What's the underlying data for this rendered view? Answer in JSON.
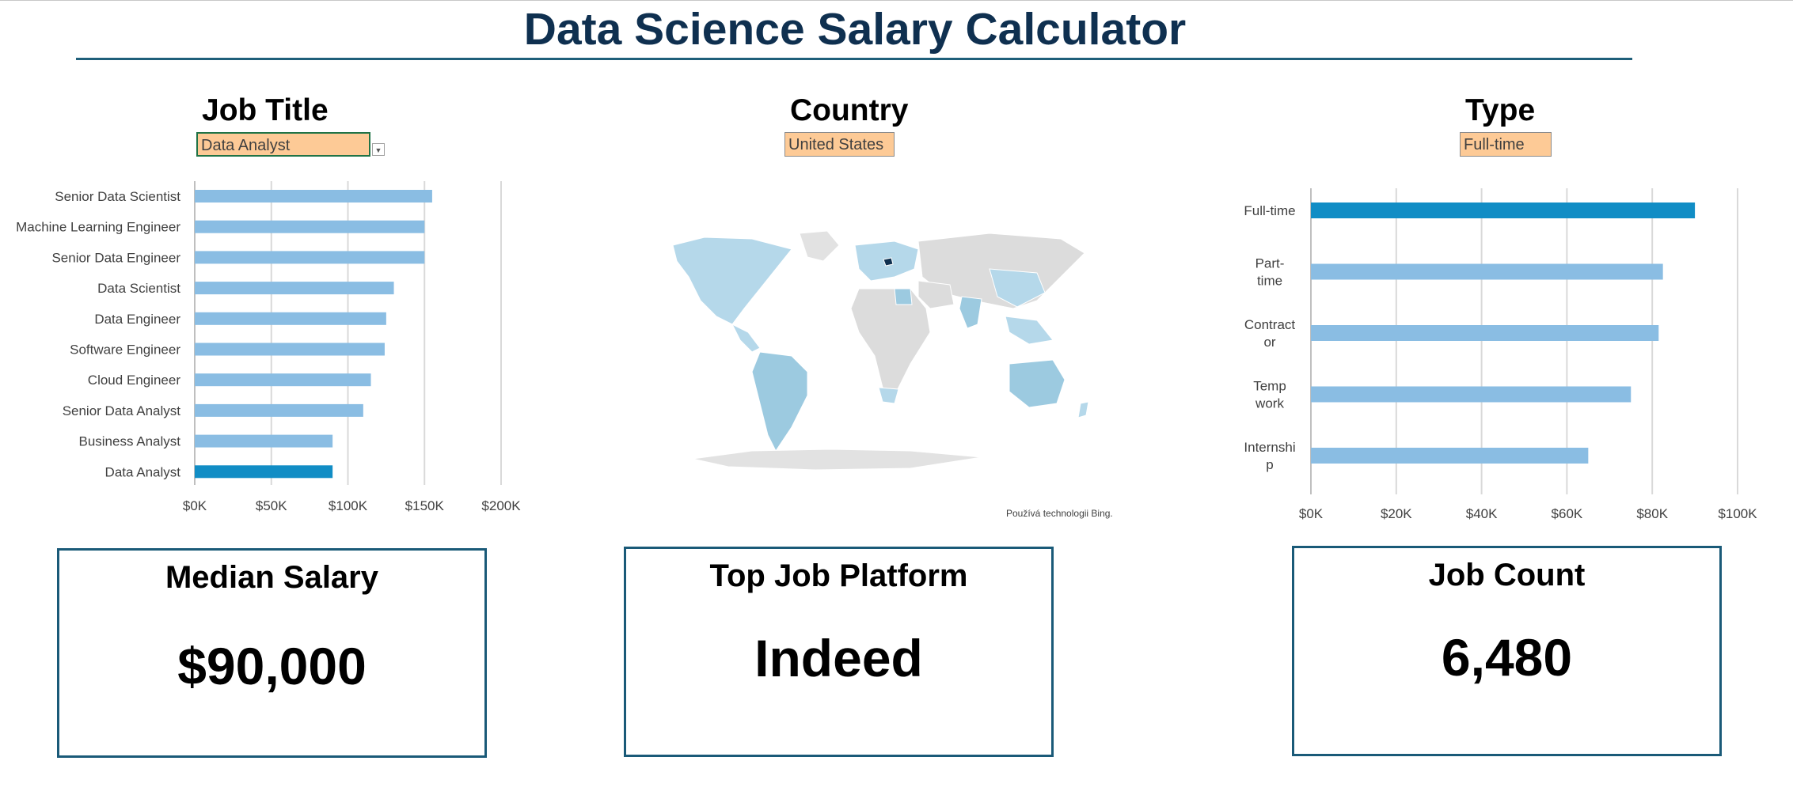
{
  "title": "Data Science Salary Calculator",
  "filters": {
    "job_title": {
      "label": "Job Title",
      "value": "Data Analyst"
    },
    "country": {
      "label": "Country",
      "value": "United States"
    },
    "type": {
      "label": "Type",
      "value": "Full-time"
    }
  },
  "map": {
    "attribution": "Používá technologii Bing."
  },
  "colors": {
    "highlight": "#118dc5",
    "bar": "#8abde3",
    "title": "#0f3050",
    "card_border": "#1a5a78",
    "filter_fill": "#fdca96"
  },
  "cards": {
    "median_salary": {
      "title": "Median Salary",
      "value": "$90,000"
    },
    "top_platform": {
      "title": "Top Job Platform",
      "value": "Indeed"
    },
    "job_count": {
      "title": "Job Count",
      "value": "6,480"
    }
  },
  "chart_data": [
    {
      "type": "bar",
      "orientation": "horizontal",
      "categories": [
        "Senior Data Scientist",
        "Machine Learning Engineer",
        "Senior Data Engineer",
        "Data Scientist",
        "Data Engineer",
        "Software Engineer",
        "Cloud Engineer",
        "Senior Data Analyst",
        "Business Analyst",
        "Data Analyst"
      ],
      "values": [
        155000,
        150000,
        150000,
        130000,
        125000,
        124000,
        115000,
        110000,
        90000,
        90000
      ],
      "highlight": "Data Analyst",
      "xlim": [
        0,
        200000
      ],
      "xticks": [
        {
          "value": 0,
          "label": "$0K"
        },
        {
          "value": 50000,
          "label": "$50K"
        },
        {
          "value": 100000,
          "label": "$100K"
        },
        {
          "value": 150000,
          "label": "$150K"
        },
        {
          "value": 200000,
          "label": "$200K"
        }
      ],
      "grid": true
    },
    {
      "type": "bar",
      "orientation": "horizontal",
      "categories": [
        [
          "Full-time"
        ],
        [
          "Part-",
          "time"
        ],
        [
          "Contract",
          "or"
        ],
        [
          "Temp",
          "work"
        ],
        [
          "Internshi",
          "p"
        ]
      ],
      "values": [
        90000,
        82500,
        81500,
        75000,
        65000
      ],
      "highlight_index": 0,
      "xlim": [
        0,
        100000
      ],
      "xticks": [
        {
          "value": 0,
          "label": "$0K"
        },
        {
          "value": 20000,
          "label": "$20K"
        },
        {
          "value": 40000,
          "label": "$40K"
        },
        {
          "value": 60000,
          "label": "$60K"
        },
        {
          "value": 80000,
          "label": "$80K"
        },
        {
          "value": 100000,
          "label": "$100K"
        }
      ],
      "grid": true
    }
  ]
}
